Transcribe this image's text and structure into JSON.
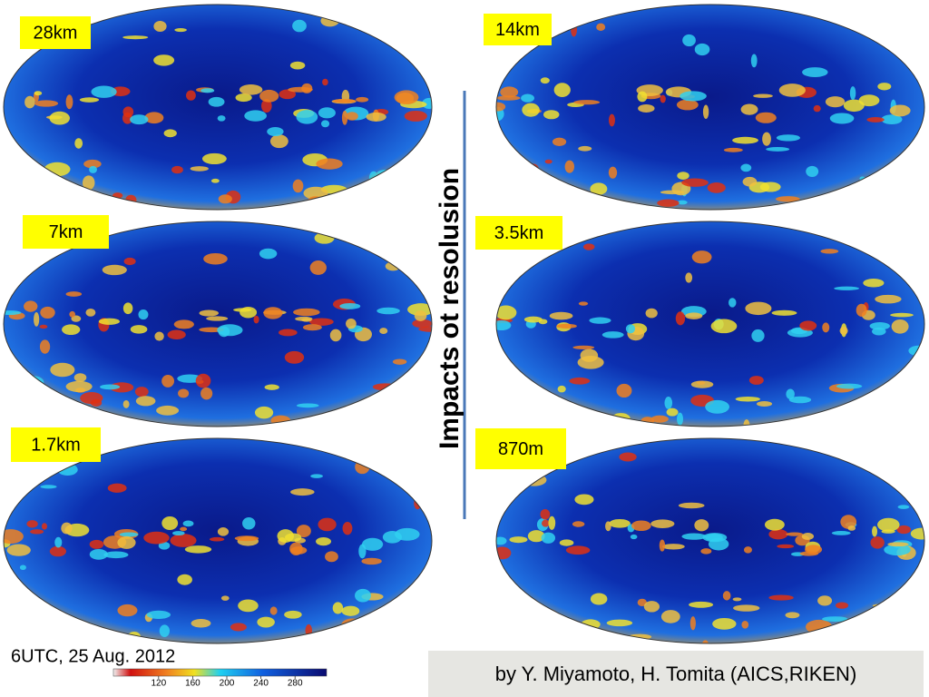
{
  "title": "Impacts ot resolusion",
  "panels": [
    {
      "label": "28km"
    },
    {
      "label": "14km"
    },
    {
      "label": "7km"
    },
    {
      "label": "3.5km"
    },
    {
      "label": "1.7km"
    },
    {
      "label": "870m"
    }
  ],
  "date": "6UTC, 25 Aug. 2012",
  "colorbar": {
    "lim": [
      67,
      317
    ],
    "ticks": [
      120,
      160,
      200,
      240,
      280
    ]
  },
  "credit": "by Y. Miyamoto, H. Tomita (AICS,RIKEN)"
}
